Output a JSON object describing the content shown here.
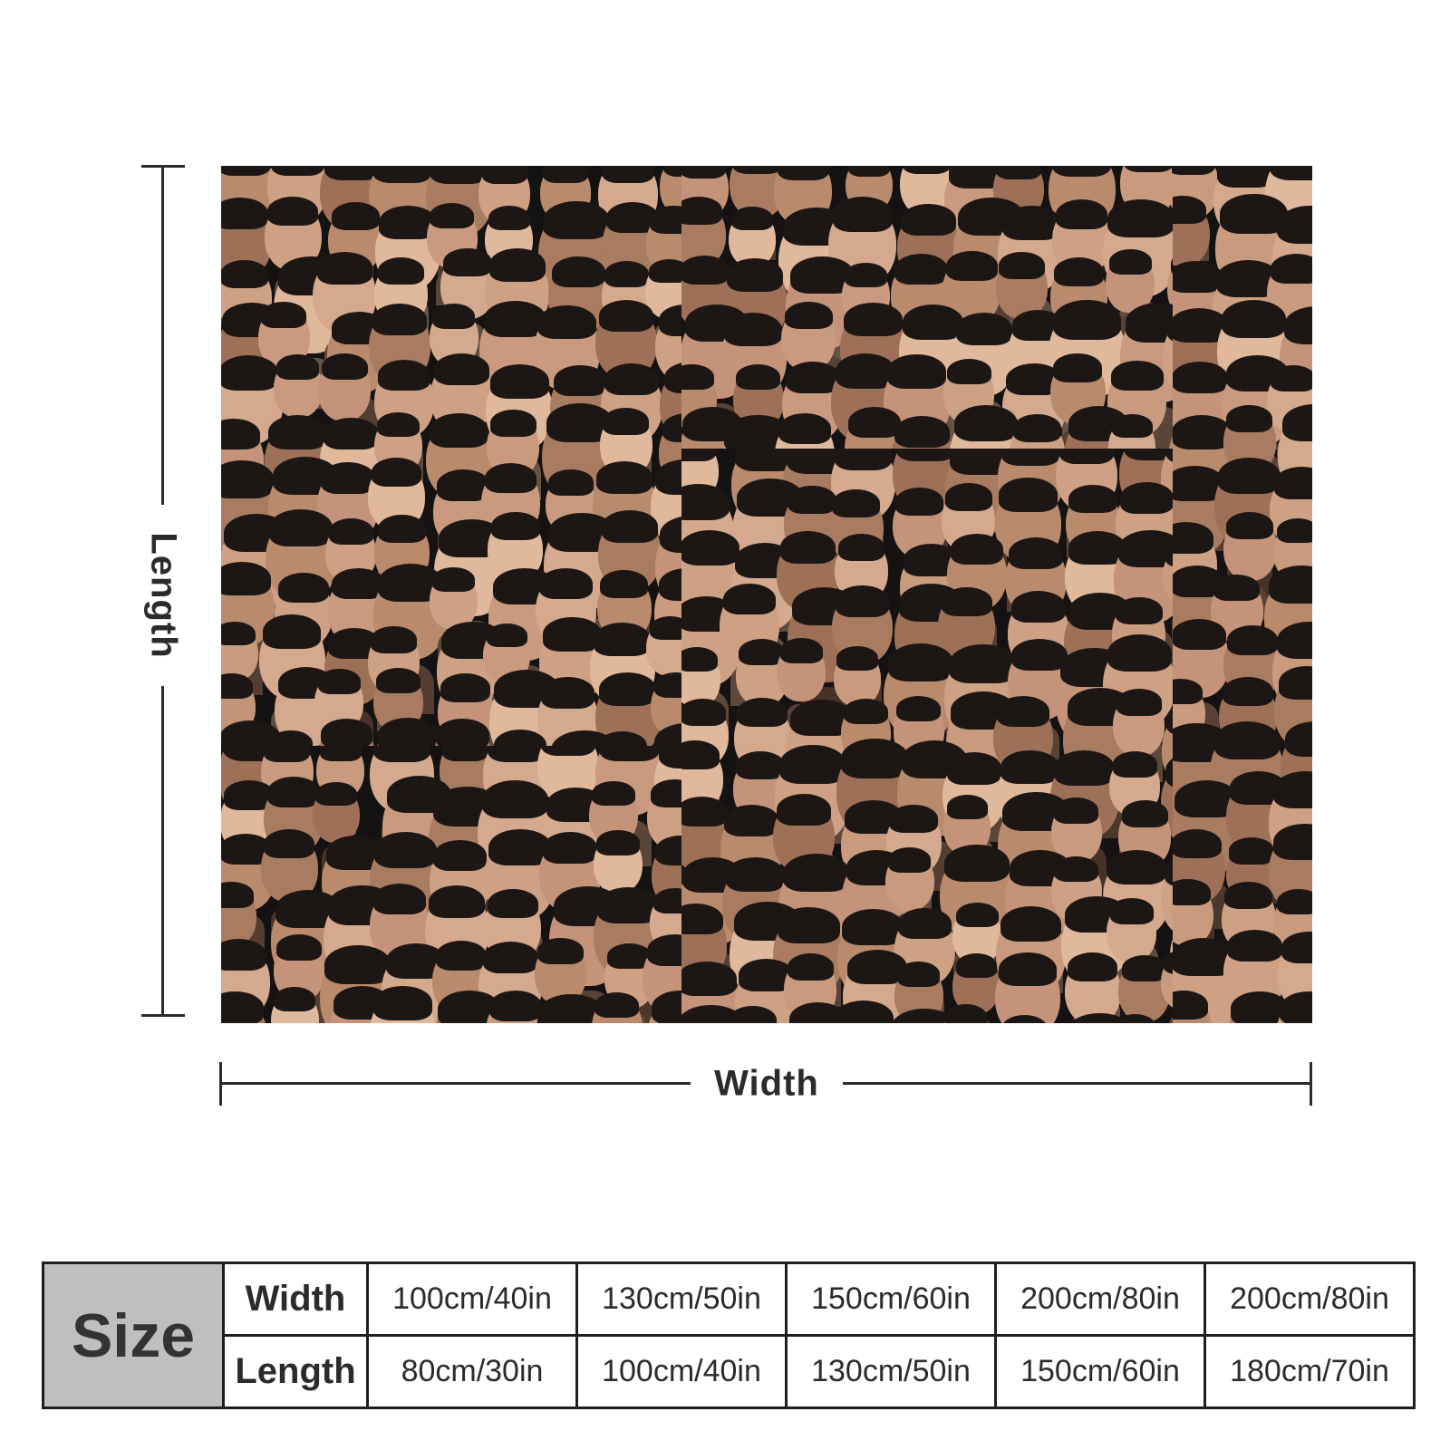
{
  "labels": {
    "length": "Length",
    "width": "Width"
  },
  "size_table": {
    "header": "Size",
    "rows": [
      {
        "label": "Width",
        "values": [
          "100cm/40in",
          "130cm/50in",
          "150cm/60in",
          "200cm/80in",
          "200cm/80in"
        ]
      },
      {
        "label": "Length",
        "values": [
          "80cm/30in",
          "100cm/40in",
          "130cm/50in",
          "150cm/60in",
          "180cm/70in"
        ]
      }
    ]
  },
  "colors": {
    "ink": "#2b2b2b",
    "size_header_bg": "#bfbfbf",
    "table_border": "#1e1e1e",
    "artwork_background": "#1a1717"
  }
}
